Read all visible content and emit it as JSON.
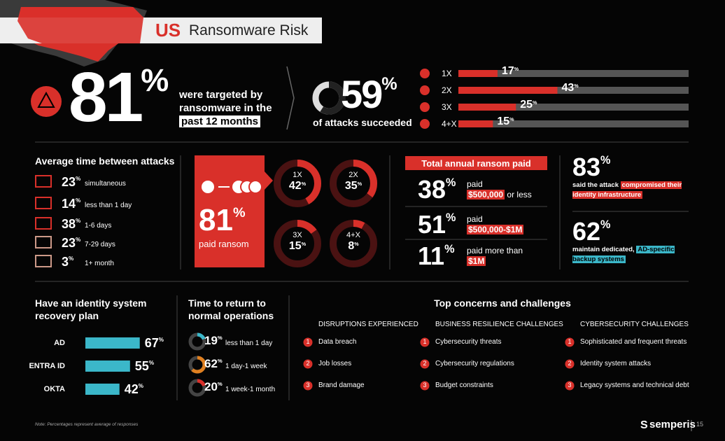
{
  "header": {
    "country": "US",
    "title": "Ransomware Risk"
  },
  "targeted": {
    "value": "81%",
    "text": "were targeted by ransomware in the",
    "highlight": "past 12 months"
  },
  "succeeded": {
    "value": 59,
    "label": "59%",
    "text": "of attacks succeeded"
  },
  "attack_counts": {
    "categories": [
      "1X",
      "2X",
      "3X",
      "4+X"
    ],
    "values": [
      17,
      43,
      25,
      15
    ],
    "value_labels": [
      "17%",
      "43%",
      "25%",
      "15%"
    ],
    "xlim": [
      0,
      100
    ]
  },
  "avg_time": {
    "title": "Average time between attacks",
    "items": [
      {
        "value": "23%",
        "label": "simultaneous"
      },
      {
        "value": "14%",
        "label": "less than 1 day"
      },
      {
        "value": "38%",
        "label": "1-6 days"
      },
      {
        "value": "23%",
        "label": "7-29 days"
      },
      {
        "value": "3%",
        "label": "1+ month"
      }
    ]
  },
  "paid_ransom": {
    "value": "81%",
    "label": "paid ransom",
    "categories": [
      "1X",
      "2X",
      "3X",
      "4+X"
    ],
    "values": [
      42,
      35,
      15,
      8
    ],
    "value_labels": [
      "42%",
      "35%",
      "15%",
      "8%"
    ]
  },
  "total_paid": {
    "title": "Total annual ransom paid",
    "rows": [
      {
        "value": "38%",
        "text": "paid",
        "highlight": "$500,000",
        "suffix": "or less"
      },
      {
        "value": "51%",
        "text": "paid",
        "highlight": "$500,000-$1M"
      },
      {
        "value": "11%",
        "text": "paid more than",
        "highlight": "$1M"
      }
    ]
  },
  "identity": {
    "value": "83%",
    "text": "said the attack",
    "highlight": "compromised their identity infrastructure"
  },
  "backup": {
    "value": "62%",
    "text": "maintain dedicated,",
    "highlight": "AD-specific backup systems"
  },
  "recovery_plan": {
    "title": "Have an identity system recovery plan",
    "categories": [
      "AD",
      "ENTRA ID",
      "OKTA"
    ],
    "values": [
      67,
      55,
      42
    ],
    "value_labels": [
      "67%",
      "55%",
      "42%"
    ],
    "xlim": [
      0,
      100
    ]
  },
  "return_time": {
    "title": "Time to return to normal operations",
    "values": [
      19,
      62,
      20
    ],
    "value_labels": [
      "19%",
      "62%",
      "20%"
    ],
    "labels": [
      "less than 1 day",
      "1 day-1 week",
      "1 week-1 month"
    ]
  },
  "concerns": {
    "title": "Top concerns and challenges",
    "columns": [
      {
        "heading": "DISRUPTIONS EXPERIENCED",
        "items": [
          {
            "rank": 1,
            "text": "Data breach"
          },
          {
            "rank": 2,
            "text": "Job losses"
          },
          {
            "rank": 3,
            "text": "Brand damage"
          }
        ]
      },
      {
        "heading": "BUSINESS RESILIENCE CHALLENGES",
        "items": [
          {
            "rank": 1,
            "text": "Cybersecurity threats"
          },
          {
            "rank": 2,
            "text": "Cybersecurity regulations"
          },
          {
            "rank": 3,
            "text": "Budget constraints"
          }
        ]
      },
      {
        "heading": "CYBERSECURITY CHALLENGES",
        "items": [
          {
            "rank": 1,
            "text": "Sophisticated and frequent threats"
          },
          {
            "rank": 2,
            "text": "Identity system attacks"
          },
          {
            "rank": 3,
            "text": "Legacy systems and technical debt"
          }
        ]
      }
    ]
  },
  "footer": {
    "note": "Note: Percentages represent average of responses",
    "brand": "semperis",
    "page": "15"
  }
}
